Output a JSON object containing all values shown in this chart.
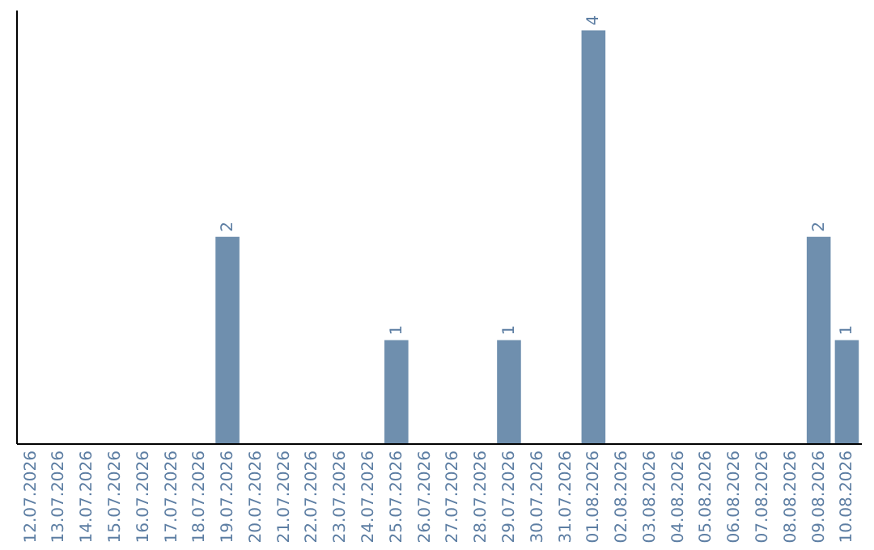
{
  "chart_data": {
    "type": "bar",
    "categories": [
      "12.07.2026",
      "13.07.2026",
      "14.07.2026",
      "15.07.2026",
      "16.07.2026",
      "17.07.2026",
      "18.07.2026",
      "19.07.2026",
      "20.07.2026",
      "21.07.2026",
      "22.07.2026",
      "23.07.2026",
      "24.07.2026",
      "25.07.2026",
      "26.07.2026",
      "27.07.2026",
      "28.07.2026",
      "29.07.2026",
      "30.07.2026",
      "31.07.2026",
      "01.08.2026",
      "02.08.2026",
      "03.08.2026",
      "04.08.2026",
      "05.08.2026",
      "06.08.2026",
      "07.08.2026",
      "08.08.2026",
      "09.08.2026",
      "10.08.2026"
    ],
    "values": [
      0,
      0,
      0,
      0,
      0,
      0,
      0,
      2,
      0,
      0,
      0,
      0,
      0,
      1,
      0,
      0,
      0,
      1,
      0,
      0,
      4,
      0,
      0,
      0,
      0,
      0,
      0,
      0,
      2,
      1
    ],
    "value_labels": [
      null,
      null,
      null,
      null,
      null,
      null,
      null,
      "2",
      null,
      null,
      null,
      null,
      null,
      "1",
      null,
      null,
      null,
      "1",
      null,
      null,
      "4",
      null,
      null,
      null,
      null,
      null,
      null,
      null,
      "2",
      "1"
    ],
    "color": "#6f8fae",
    "ylim": [
      0,
      4.2
    ],
    "tick_labels": "x",
    "grid": false
  }
}
